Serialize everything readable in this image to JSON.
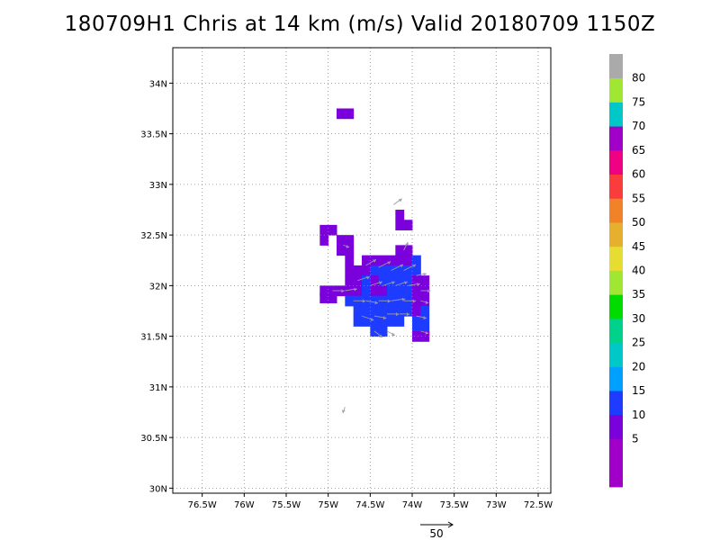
{
  "title": "180709H1 Chris at 14 km (m/s) Valid 20180709 1150Z",
  "chart_data": {
    "type": "heatmap",
    "title": "180709H1 Chris at 14 km (m/s) Valid 20180709 1150Z",
    "xlim": [
      -76.85,
      -72.35
    ],
    "ylim": [
      29.95,
      34.35
    ],
    "x_ticks": [
      {
        "value": -76.5,
        "label": "76.5W"
      },
      {
        "value": -76.0,
        "label": "76W"
      },
      {
        "value": -75.5,
        "label": "75.5W"
      },
      {
        "value": -75.0,
        "label": "75W"
      },
      {
        "value": -74.5,
        "label": "74.5W"
      },
      {
        "value": -74.0,
        "label": "74W"
      },
      {
        "value": -73.5,
        "label": "73.5W"
      },
      {
        "value": -73.0,
        "label": "73W"
      },
      {
        "value": -72.5,
        "label": "72.5W"
      }
    ],
    "y_ticks": [
      {
        "value": 30.0,
        "label": "30N"
      },
      {
        "value": 30.5,
        "label": "30.5N"
      },
      {
        "value": 31.0,
        "label": "31N"
      },
      {
        "value": 31.5,
        "label": "31.5N"
      },
      {
        "value": 32.0,
        "label": "32N"
      },
      {
        "value": 32.5,
        "label": "32.5N"
      },
      {
        "value": 33.0,
        "label": "33N"
      },
      {
        "value": 33.5,
        "label": "33.5N"
      },
      {
        "value": 34.0,
        "label": "34N"
      }
    ],
    "grid": true,
    "grid_step_deg": 0.1,
    "colorbar": {
      "levels": [
        {
          "label": "",
          "color": "#a000c8"
        },
        {
          "label": "5",
          "color": "#a000c8"
        },
        {
          "label": "10",
          "color": "#7a00dc"
        },
        {
          "label": "15",
          "color": "#1e3cff"
        },
        {
          "label": "20",
          "color": "#00a0ff"
        },
        {
          "label": "25",
          "color": "#00c8c8"
        },
        {
          "label": "30",
          "color": "#00d28c"
        },
        {
          "label": "35",
          "color": "#00dc00"
        },
        {
          "label": "40",
          "color": "#a0e632"
        },
        {
          "label": "45",
          "color": "#e6dc32"
        },
        {
          "label": "50",
          "color": "#e6af2d"
        },
        {
          "label": "55",
          "color": "#f08228"
        },
        {
          "label": "60",
          "color": "#fa3c3c"
        },
        {
          "label": "65",
          "color": "#f00082"
        },
        {
          "label": "70",
          "color": "#a000c8"
        },
        {
          "label": "75",
          "color": "#00c8c8"
        },
        {
          "label": "80",
          "color": "#a0e632"
        },
        {
          "label": "",
          "color": "#aaaaaa"
        }
      ]
    },
    "cells": [
      {
        "lon": -74.85,
        "lat": 33.7,
        "v": 8
      },
      {
        "lon": -74.75,
        "lat": 33.7,
        "v": 8
      },
      {
        "lon": -75.05,
        "lat": 32.55,
        "v": 8
      },
      {
        "lon": -75.05,
        "lat": 32.45,
        "v": 8
      },
      {
        "lon": -74.95,
        "lat": 32.55,
        "v": 8
      },
      {
        "lon": -74.15,
        "lat": 32.7,
        "v": 8
      },
      {
        "lon": -74.15,
        "lat": 32.6,
        "v": 8
      },
      {
        "lon": -74.05,
        "lat": 32.6,
        "v": 8
      },
      {
        "lon": -74.85,
        "lat": 32.45,
        "v": 8
      },
      {
        "lon": -74.75,
        "lat": 32.45,
        "v": 8
      },
      {
        "lon": -74.85,
        "lat": 32.35,
        "v": 8
      },
      {
        "lon": -74.75,
        "lat": 32.35,
        "v": 8
      },
      {
        "lon": -74.75,
        "lat": 32.25,
        "v": 8
      },
      {
        "lon": -74.75,
        "lat": 32.15,
        "v": 8
      },
      {
        "lon": -74.65,
        "lat": 32.15,
        "v": 8
      },
      {
        "lon": -74.55,
        "lat": 32.25,
        "v": 8
      },
      {
        "lon": -74.45,
        "lat": 32.25,
        "v": 8
      },
      {
        "lon": -74.35,
        "lat": 32.25,
        "v": 8
      },
      {
        "lon": -74.25,
        "lat": 32.25,
        "v": 8
      },
      {
        "lon": -74.15,
        "lat": 32.25,
        "v": 8
      },
      {
        "lon": -74.05,
        "lat": 32.25,
        "v": 8
      },
      {
        "lon": -74.15,
        "lat": 32.35,
        "v": 8
      },
      {
        "lon": -74.05,
        "lat": 32.35,
        "v": 8
      },
      {
        "lon": -74.55,
        "lat": 32.15,
        "v": 8
      },
      {
        "lon": -74.45,
        "lat": 32.15,
        "v": 12
      },
      {
        "lon": -74.35,
        "lat": 32.15,
        "v": 12
      },
      {
        "lon": -74.25,
        "lat": 32.15,
        "v": 12
      },
      {
        "lon": -74.15,
        "lat": 32.15,
        "v": 12
      },
      {
        "lon": -74.05,
        "lat": 32.15,
        "v": 12
      },
      {
        "lon": -73.95,
        "lat": 32.15,
        "v": 12
      },
      {
        "lon": -73.95,
        "lat": 32.25,
        "v": 12
      },
      {
        "lon": -74.75,
        "lat": 32.05,
        "v": 8
      },
      {
        "lon": -74.65,
        "lat": 32.05,
        "v": 8
      },
      {
        "lon": -74.55,
        "lat": 32.05,
        "v": 12
      },
      {
        "lon": -74.45,
        "lat": 32.05,
        "v": 8
      },
      {
        "lon": -74.35,
        "lat": 32.05,
        "v": 12
      },
      {
        "lon": -74.25,
        "lat": 32.05,
        "v": 12
      },
      {
        "lon": -74.15,
        "lat": 32.05,
        "v": 12
      },
      {
        "lon": -74.05,
        "lat": 32.05,
        "v": 12
      },
      {
        "lon": -73.95,
        "lat": 32.05,
        "v": 8
      },
      {
        "lon": -73.85,
        "lat": 32.05,
        "v": 8
      },
      {
        "lon": -75.05,
        "lat": 31.95,
        "v": 8
      },
      {
        "lon": -74.95,
        "lat": 31.95,
        "v": 8
      },
      {
        "lon": -74.85,
        "lat": 31.95,
        "v": 8
      },
      {
        "lon": -74.75,
        "lat": 31.95,
        "v": 8
      },
      {
        "lon": -74.65,
        "lat": 31.95,
        "v": 8
      },
      {
        "lon": -74.55,
        "lat": 31.95,
        "v": 12
      },
      {
        "lon": -74.45,
        "lat": 31.95,
        "v": 8
      },
      {
        "lon": -74.35,
        "lat": 31.95,
        "v": 8
      },
      {
        "lon": -74.25,
        "lat": 31.95,
        "v": 12
      },
      {
        "lon": -74.15,
        "lat": 31.95,
        "v": 12
      },
      {
        "lon": -74.05,
        "lat": 31.95,
        "v": 12
      },
      {
        "lon": -73.95,
        "lat": 31.95,
        "v": 8
      },
      {
        "lon": -73.85,
        "lat": 31.95,
        "v": 8
      },
      {
        "lon": -75.05,
        "lat": 31.88,
        "v": 8
      },
      {
        "lon": -74.95,
        "lat": 31.88,
        "v": 8
      },
      {
        "lon": -74.75,
        "lat": 31.85,
        "v": 12
      },
      {
        "lon": -74.65,
        "lat": 31.85,
        "v": 12
      },
      {
        "lon": -74.55,
        "lat": 31.85,
        "v": 12
      },
      {
        "lon": -74.45,
        "lat": 31.85,
        "v": 12
      },
      {
        "lon": -74.35,
        "lat": 31.85,
        "v": 12
      },
      {
        "lon": -74.25,
        "lat": 31.85,
        "v": 12
      },
      {
        "lon": -74.15,
        "lat": 31.85,
        "v": 12
      },
      {
        "lon": -74.05,
        "lat": 31.85,
        "v": 12
      },
      {
        "lon": -73.95,
        "lat": 31.85,
        "v": 8
      },
      {
        "lon": -73.85,
        "lat": 31.85,
        "v": 8
      },
      {
        "lon": -74.65,
        "lat": 31.75,
        "v": 12
      },
      {
        "lon": -74.55,
        "lat": 31.75,
        "v": 12
      },
      {
        "lon": -74.45,
        "lat": 31.75,
        "v": 12
      },
      {
        "lon": -74.35,
        "lat": 31.75,
        "v": 12
      },
      {
        "lon": -74.25,
        "lat": 31.75,
        "v": 12
      },
      {
        "lon": -74.15,
        "lat": 31.75,
        "v": 12
      },
      {
        "lon": -74.05,
        "lat": 31.75,
        "v": 12
      },
      {
        "lon": -73.95,
        "lat": 31.75,
        "v": 8
      },
      {
        "lon": -73.85,
        "lat": 31.75,
        "v": 12
      },
      {
        "lon": -74.65,
        "lat": 31.65,
        "v": 12
      },
      {
        "lon": -74.55,
        "lat": 31.65,
        "v": 12
      },
      {
        "lon": -74.45,
        "lat": 31.65,
        "v": 12
      },
      {
        "lon": -74.35,
        "lat": 31.65,
        "v": 12
      },
      {
        "lon": -74.25,
        "lat": 31.65,
        "v": 12
      },
      {
        "lon": -74.15,
        "lat": 31.65,
        "v": 12
      },
      {
        "lon": -73.95,
        "lat": 31.65,
        "v": 12
      },
      {
        "lon": -73.85,
        "lat": 31.65,
        "v": 12
      },
      {
        "lon": -74.45,
        "lat": 31.55,
        "v": 12
      },
      {
        "lon": -74.35,
        "lat": 31.55,
        "v": 12
      },
      {
        "lon": -73.95,
        "lat": 31.55,
        "v": 12
      },
      {
        "lon": -73.85,
        "lat": 31.55,
        "v": 12
      },
      {
        "lon": -73.95,
        "lat": 31.5,
        "v": 8
      },
      {
        "lon": -73.85,
        "lat": 31.5,
        "v": 8
      }
    ],
    "vectors": [
      {
        "lon": -74.22,
        "lat": 32.8,
        "u": 4,
        "v": 3
      },
      {
        "lon": -74.1,
        "lat": 32.35,
        "u": 2,
        "v": 4
      },
      {
        "lon": -74.82,
        "lat": 32.4,
        "u": 3,
        "v": -1
      },
      {
        "lon": -74.55,
        "lat": 32.2,
        "u": 5,
        "v": 3
      },
      {
        "lon": -74.4,
        "lat": 32.18,
        "u": 6,
        "v": 3
      },
      {
        "lon": -74.25,
        "lat": 32.15,
        "u": 6,
        "v": 3
      },
      {
        "lon": -74.1,
        "lat": 32.15,
        "u": 6,
        "v": 3
      },
      {
        "lon": -73.95,
        "lat": 32.1,
        "u": 5,
        "v": 1
      },
      {
        "lon": -74.95,
        "lat": 31.95,
        "u": 6,
        "v": 0
      },
      {
        "lon": -74.8,
        "lat": 31.95,
        "u": 6,
        "v": 1
      },
      {
        "lon": -74.65,
        "lat": 32.05,
        "u": 6,
        "v": 2
      },
      {
        "lon": -74.5,
        "lat": 32.0,
        "u": 6,
        "v": 2
      },
      {
        "lon": -74.35,
        "lat": 32.0,
        "u": 6,
        "v": 2
      },
      {
        "lon": -74.2,
        "lat": 32.0,
        "u": 6,
        "v": 2
      },
      {
        "lon": -74.05,
        "lat": 32.0,
        "u": 6,
        "v": 1
      },
      {
        "lon": -73.9,
        "lat": 31.95,
        "u": 5,
        "v": 0
      },
      {
        "lon": -74.7,
        "lat": 31.85,
        "u": 6,
        "v": 0
      },
      {
        "lon": -74.55,
        "lat": 31.85,
        "u": 6,
        "v": -1
      },
      {
        "lon": -74.4,
        "lat": 31.85,
        "u": 6,
        "v": 0
      },
      {
        "lon": -74.25,
        "lat": 31.85,
        "u": 7,
        "v": 1
      },
      {
        "lon": -74.1,
        "lat": 31.85,
        "u": 6,
        "v": 0
      },
      {
        "lon": -73.9,
        "lat": 31.85,
        "u": 4,
        "v": -1
      },
      {
        "lon": -74.6,
        "lat": 31.7,
        "u": 6,
        "v": -2
      },
      {
        "lon": -74.45,
        "lat": 31.7,
        "u": 6,
        "v": -1
      },
      {
        "lon": -74.3,
        "lat": 31.72,
        "u": 6,
        "v": 0
      },
      {
        "lon": -74.15,
        "lat": 31.72,
        "u": 5,
        "v": 0
      },
      {
        "lon": -73.95,
        "lat": 31.7,
        "u": 5,
        "v": -1
      },
      {
        "lon": -74.45,
        "lat": 31.55,
        "u": 4,
        "v": -3
      },
      {
        "lon": -74.3,
        "lat": 31.55,
        "u": 4,
        "v": -2
      },
      {
        "lon": -73.9,
        "lat": 31.55,
        "u": 4,
        "v": -1
      },
      {
        "lon": -74.8,
        "lat": 30.8,
        "u": -1,
        "v": -3
      }
    ],
    "reference_vector": {
      "value": 50,
      "label": "50"
    }
  }
}
